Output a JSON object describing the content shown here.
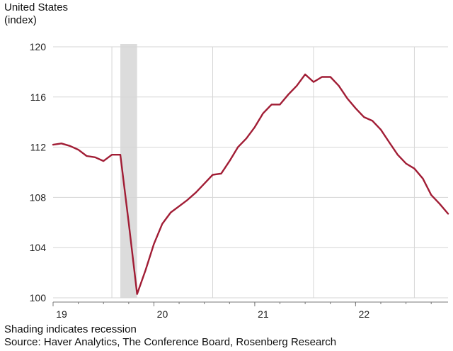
{
  "header": {
    "country": "United States",
    "unit": "(index)"
  },
  "footer": {
    "note": "Shading indicates recession",
    "source": "Source: Haver Analytics, The Conference Board, Rosenberg Research"
  },
  "colors": {
    "line": "#a11d35",
    "recession": "#dcdcdc",
    "grid": "#d6d6d6",
    "axis": "#777777"
  },
  "chart_data": {
    "type": "line",
    "title": "",
    "xlabel": "",
    "ylabel": "(index)",
    "ylim": [
      100,
      120
    ],
    "yticks": [
      100,
      104,
      108,
      112,
      116,
      120
    ],
    "xlim": [
      2019.0,
      2022.917
    ],
    "xticks": [
      {
        "value": 2019,
        "label": "19"
      },
      {
        "value": 2020,
        "label": "20"
      },
      {
        "value": 2021,
        "label": "21"
      },
      {
        "value": 2022,
        "label": "22"
      }
    ],
    "recession": [
      {
        "start": 2019.667,
        "end": 2019.833
      }
    ],
    "series": [
      {
        "name": "United States",
        "x": [
          2019.0,
          2019.083,
          2019.167,
          2019.25,
          2019.333,
          2019.417,
          2019.5,
          2019.583,
          2019.667,
          2019.75,
          2019.833,
          2019.917,
          2020.0,
          2020.083,
          2020.167,
          2020.25,
          2020.333,
          2020.417,
          2020.5,
          2020.583,
          2020.667,
          2020.75,
          2020.833,
          2020.917,
          2021.0,
          2021.083,
          2021.167,
          2021.25,
          2021.333,
          2021.417,
          2021.5,
          2021.583,
          2021.667,
          2021.75,
          2021.833,
          2021.917,
          2022.0,
          2022.083,
          2022.167,
          2022.25,
          2022.333,
          2022.417,
          2022.5,
          2022.583,
          2022.667,
          2022.75,
          2022.833,
          2022.917
        ],
        "values": [
          112.2,
          112.3,
          112.1,
          111.8,
          111.3,
          111.2,
          110.9,
          111.4,
          111.4,
          106.0,
          100.3,
          102.2,
          104.3,
          105.9,
          106.8,
          107.3,
          107.8,
          108.4,
          109.1,
          109.8,
          109.9,
          110.9,
          112.0,
          112.7,
          113.6,
          114.7,
          115.4,
          115.4,
          116.2,
          116.9,
          117.8,
          117.2,
          117.6,
          117.6,
          116.9,
          115.9,
          115.1,
          114.4,
          114.1,
          113.4,
          112.4,
          111.4,
          110.7,
          110.3,
          109.5,
          108.2,
          107.5,
          106.7
        ]
      }
    ]
  }
}
